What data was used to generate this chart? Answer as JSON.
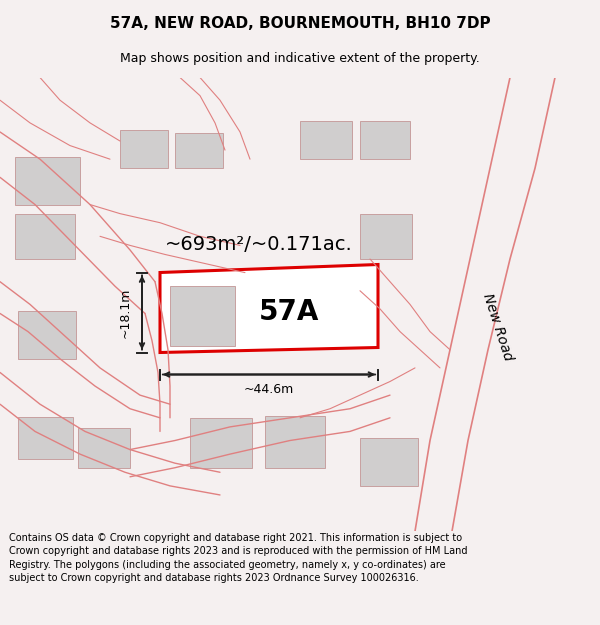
{
  "title": "57A, NEW ROAD, BOURNEMOUTH, BH10 7DP",
  "subtitle": "Map shows position and indicative extent of the property.",
  "footer": "Contains OS data © Crown copyright and database right 2021. This information is subject to Crown copyright and database rights 2023 and is reproduced with the permission of HM Land Registry. The polygons (including the associated geometry, namely x, y co-ordinates) are subject to Crown copyright and database rights 2023 Ordnance Survey 100026316.",
  "area_text": "~693m²/~0.171ac.",
  "label_57a": "57A",
  "dim_width": "~44.6m",
  "dim_height": "~18.1m",
  "road_label": "New Road",
  "bg_color": "#f5f0f0",
  "map_bg": "#f5f0f0",
  "plot_color": "#dd0000",
  "plot_fill": "#ffffff",
  "building_color": "#d0cece",
  "building_edge": "#c8a0a0",
  "road_line_color": "#e08080",
  "dim_line_color": "#222222",
  "title_color": "#000000",
  "text_color": "#000000",
  "title_fontsize": 11,
  "subtitle_fontsize": 9,
  "footer_fontsize": 7,
  "area_fontsize": 14,
  "label_fontsize": 20,
  "dim_fontsize": 9,
  "road_label_fontsize": 10
}
